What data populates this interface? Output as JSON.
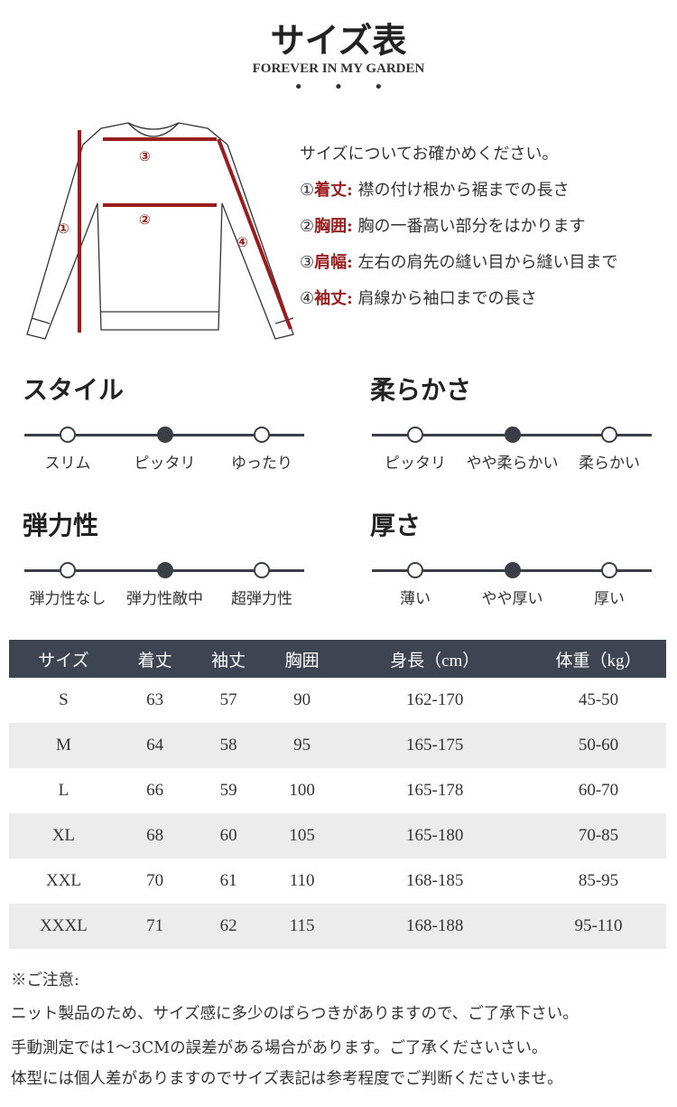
{
  "header": {
    "title": "サイズ表",
    "subtitle": "FOREVER IN MY GARDEN",
    "dots": "• • •"
  },
  "diagram": {
    "markers": [
      "①",
      "②",
      "③",
      "④"
    ],
    "accent": "#9b1c1c"
  },
  "measure": {
    "intro": "サイズについてお確かめください。",
    "items": [
      {
        "num": "①",
        "key": "着丈:",
        "text": "襟の付け根から裾までの長さ"
      },
      {
        "num": "②",
        "key": "胸囲:",
        "text": "胸の一番高い部分をはかります"
      },
      {
        "num": "③",
        "key": "肩幅:",
        "text": "左右の肩先の縫い目から縫い目まで"
      },
      {
        "num": "④",
        "key": "袖丈:",
        "text": "肩線から袖口までの長さ"
      }
    ]
  },
  "attributes": [
    {
      "title": "スタイル",
      "options": [
        "スリム",
        "ピッタリ",
        "ゆったり"
      ],
      "selected": 1
    },
    {
      "title": "柔らかさ",
      "options": [
        "ピッタリ",
        "やや柔らかい",
        "柔らかい"
      ],
      "selected": 1
    },
    {
      "title": "弾力性",
      "options": [
        "弾力性なし",
        "弾力性敵中",
        "超弾力性"
      ],
      "selected": 1
    },
    {
      "title": "厚さ",
      "options": [
        "薄い",
        "やや厚い",
        "厚い"
      ],
      "selected": 1
    }
  ],
  "table": {
    "headers": [
      "サイズ",
      "着丈",
      "袖丈",
      "胸囲",
      "身長（cm）",
      "体重（kg）"
    ],
    "rows": [
      [
        "S",
        "63",
        "57",
        "90",
        "162-170",
        "45-50"
      ],
      [
        "M",
        "64",
        "58",
        "95",
        "165-175",
        "50-60"
      ],
      [
        "L",
        "66",
        "59",
        "100",
        "165-178",
        "60-70"
      ],
      [
        "XL",
        "68",
        "60",
        "105",
        "165-180",
        "70-85"
      ],
      [
        "XXL",
        "70",
        "61",
        "110",
        "168-185",
        "85-95"
      ],
      [
        "XXXL",
        "71",
        "62",
        "115",
        "168-188",
        "95-110"
      ]
    ]
  },
  "notes": [
    "※ご注意:",
    "ニット製品のため、サイズ感に多少のばらつきがありますので、ご了承下さい。",
    "手動測定では1～3CMの誤差がある場合があります。ご了承くださいさい。",
    "体型には個人差がありますのでサイズ表記は参考程度でご判断くださいませ。"
  ]
}
